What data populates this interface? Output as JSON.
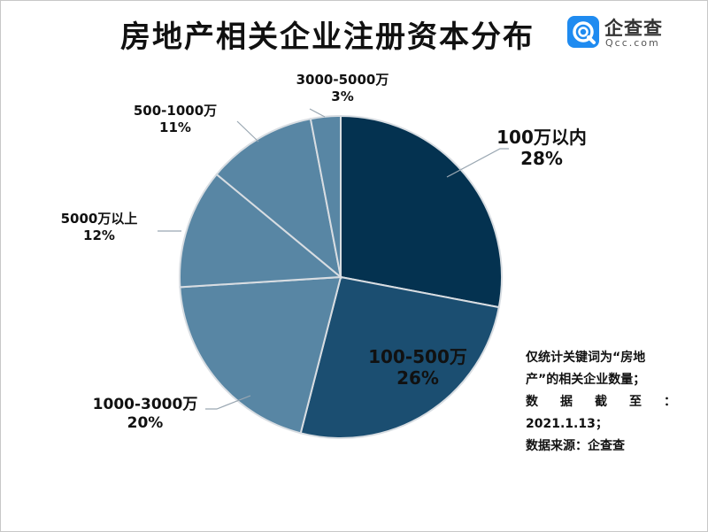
{
  "title": "房地产相关企业注册资本分布",
  "brand": {
    "name": "企查查",
    "domain": "Qcc.com"
  },
  "note": {
    "line1": "仅统计关键词为“房地",
    "line2": "产”的相关企业数量；",
    "line3": "数 据 截 至 ：",
    "line4": "2021.1.13；",
    "line5": "数据来源：企查查"
  },
  "chart_data": {
    "type": "pie",
    "title": "房地产相关企业注册资本分布",
    "unit": "%",
    "start": "12 o'clock",
    "direction": "clockwise",
    "legend": "none (labels on slices)",
    "slices": [
      {
        "label": "100万以内",
        "value": 28,
        "value_label": "28%",
        "color": "#043250"
      },
      {
        "label": "100-500万",
        "value": 26,
        "value_label": "26%",
        "color": "#1b4e71"
      },
      {
        "label": "1000-3000万",
        "value": 20,
        "value_label": "20%",
        "color": "#5886a4"
      },
      {
        "label": "5000万以上",
        "value": 12,
        "value_label": "12%",
        "color": "#5886a4"
      },
      {
        "label": "500-1000万",
        "value": 11,
        "value_label": "11%",
        "color": "#5886a4"
      },
      {
        "label": "3000-5000万",
        "value": 3,
        "value_label": "3%",
        "color": "#5886a4"
      }
    ]
  }
}
